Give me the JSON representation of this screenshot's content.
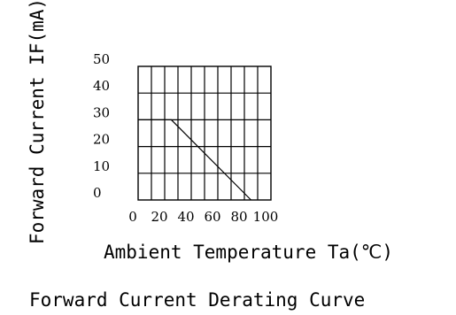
{
  "chart_data": {
    "type": "line",
    "title": "Forward Current Derating Curve",
    "xlabel": "Ambient Temperature Ta(℃)",
    "ylabel": "Forward Current IF(mA)",
    "xlim": [
      0,
      100
    ],
    "ylim": [
      0,
      50
    ],
    "x_ticks": [
      "0",
      "20",
      "40",
      "60",
      "80",
      "100"
    ],
    "y_ticks": [
      "0",
      "10",
      "20",
      "30",
      "40",
      "50"
    ],
    "grid": true,
    "series": [
      {
        "x": [
          0,
          25,
          85,
          85
        ],
        "y": [
          30,
          30,
          0,
          0
        ]
      }
    ]
  }
}
